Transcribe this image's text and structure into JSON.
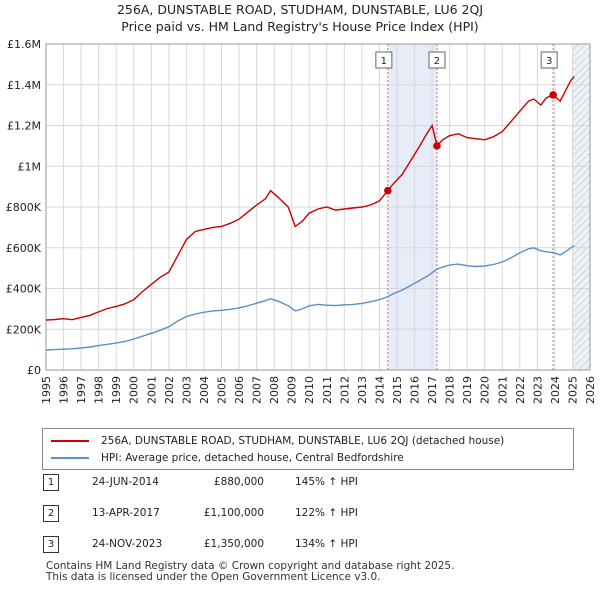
{
  "chart_data": {
    "type": "line",
    "title": "256A, DUNSTABLE ROAD, STUDHAM, DUNSTABLE, LU6 2QJ",
    "subtitle": "Price paid vs. HM Land Registry's House Price Index (HPI)",
    "xlabel": "",
    "ylabel": "",
    "xlim": [
      1995,
      2026
    ],
    "ylim": [
      0,
      1600000
    ],
    "x_ticks": [
      "1995",
      "1996",
      "1997",
      "1998",
      "1999",
      "2000",
      "2001",
      "2002",
      "2003",
      "2004",
      "2005",
      "2006",
      "2007",
      "2008",
      "2009",
      "2010",
      "2011",
      "2012",
      "2013",
      "2014",
      "2015",
      "2016",
      "2017",
      "2018",
      "2019",
      "2020",
      "2021",
      "2022",
      "2023",
      "2024",
      "2025",
      "2026"
    ],
    "y_ticks": [
      {
        "value": 0,
        "label": "£0"
      },
      {
        "value": 200000,
        "label": "£200K"
      },
      {
        "value": 400000,
        "label": "£400K"
      },
      {
        "value": 600000,
        "label": "£600K"
      },
      {
        "value": 800000,
        "label": "£800K"
      },
      {
        "value": 1000000,
        "label": "£1M"
      },
      {
        "value": 1200000,
        "label": "£1.2M"
      },
      {
        "value": 1400000,
        "label": "£1.4M"
      },
      {
        "value": 1600000,
        "label": "£1.6M"
      }
    ],
    "grid": true,
    "series": [
      {
        "name": "256A, DUNSTABLE ROAD, STUDHAM, DUNSTABLE, LU6 2QJ (detached house)",
        "color": "#cc0000",
        "points": [
          [
            1995.0,
            245000
          ],
          [
            1995.5,
            248000
          ],
          [
            1996.0,
            252000
          ],
          [
            1996.5,
            247000
          ],
          [
            1997.0,
            258000
          ],
          [
            1997.5,
            268000
          ],
          [
            1998.0,
            285000
          ],
          [
            1998.5,
            302000
          ],
          [
            1999.0,
            312000
          ],
          [
            1999.5,
            325000
          ],
          [
            2000.0,
            345000
          ],
          [
            2000.5,
            385000
          ],
          [
            2001.0,
            420000
          ],
          [
            2001.5,
            455000
          ],
          [
            2002.0,
            480000
          ],
          [
            2002.5,
            560000
          ],
          [
            2003.0,
            640000
          ],
          [
            2003.5,
            680000
          ],
          [
            2004.0,
            690000
          ],
          [
            2004.5,
            700000
          ],
          [
            2005.0,
            705000
          ],
          [
            2005.5,
            720000
          ],
          [
            2006.0,
            740000
          ],
          [
            2006.5,
            775000
          ],
          [
            2007.0,
            810000
          ],
          [
            2007.5,
            840000
          ],
          [
            2007.8,
            880000
          ],
          [
            2008.2,
            850000
          ],
          [
            2008.8,
            800000
          ],
          [
            2009.2,
            705000
          ],
          [
            2009.6,
            730000
          ],
          [
            2010.0,
            770000
          ],
          [
            2010.5,
            790000
          ],
          [
            2011.0,
            800000
          ],
          [
            2011.5,
            785000
          ],
          [
            2012.0,
            790000
          ],
          [
            2012.5,
            795000
          ],
          [
            2013.0,
            800000
          ],
          [
            2013.5,
            810000
          ],
          [
            2014.0,
            830000
          ],
          [
            2014.48,
            880000
          ],
          [
            2014.8,
            915000
          ],
          [
            2015.3,
            960000
          ],
          [
            2015.8,
            1030000
          ],
          [
            2016.3,
            1100000
          ],
          [
            2016.7,
            1160000
          ],
          [
            2017.0,
            1200000
          ],
          [
            2017.28,
            1100000
          ],
          [
            2017.6,
            1130000
          ],
          [
            2018.0,
            1150000
          ],
          [
            2018.5,
            1160000
          ],
          [
            2019.0,
            1140000
          ],
          [
            2019.5,
            1135000
          ],
          [
            2020.0,
            1130000
          ],
          [
            2020.5,
            1145000
          ],
          [
            2021.0,
            1170000
          ],
          [
            2021.5,
            1220000
          ],
          [
            2022.0,
            1270000
          ],
          [
            2022.5,
            1320000
          ],
          [
            2022.8,
            1330000
          ],
          [
            2023.2,
            1300000
          ],
          [
            2023.5,
            1335000
          ],
          [
            2023.9,
            1350000
          ],
          [
            2024.3,
            1320000
          ],
          [
            2024.6,
            1370000
          ],
          [
            2024.9,
            1420000
          ],
          [
            2025.1,
            1440000
          ]
        ]
      },
      {
        "name": "HPI: Average price, detached house, Central Bedfordshire",
        "color": "#5b8fc9",
        "points": [
          [
            1995.0,
            98000
          ],
          [
            1995.5,
            100000
          ],
          [
            1996.0,
            102000
          ],
          [
            1996.5,
            104000
          ],
          [
            1997.0,
            108000
          ],
          [
            1997.5,
            113000
          ],
          [
            1998.0,
            120000
          ],
          [
            1998.5,
            126000
          ],
          [
            1999.0,
            132000
          ],
          [
            1999.5,
            140000
          ],
          [
            2000.0,
            152000
          ],
          [
            2000.5,
            166000
          ],
          [
            2001.0,
            180000
          ],
          [
            2001.5,
            195000
          ],
          [
            2002.0,
            212000
          ],
          [
            2002.5,
            240000
          ],
          [
            2003.0,
            262000
          ],
          [
            2003.5,
            275000
          ],
          [
            2004.0,
            283000
          ],
          [
            2004.5,
            290000
          ],
          [
            2005.0,
            293000
          ],
          [
            2005.5,
            298000
          ],
          [
            2006.0,
            305000
          ],
          [
            2006.5,
            315000
          ],
          [
            2007.0,
            328000
          ],
          [
            2007.5,
            340000
          ],
          [
            2007.8,
            350000
          ],
          [
            2008.3,
            335000
          ],
          [
            2008.8,
            315000
          ],
          [
            2009.2,
            290000
          ],
          [
            2009.6,
            300000
          ],
          [
            2010.0,
            315000
          ],
          [
            2010.5,
            322000
          ],
          [
            2011.0,
            318000
          ],
          [
            2011.5,
            316000
          ],
          [
            2012.0,
            320000
          ],
          [
            2012.5,
            322000
          ],
          [
            2013.0,
            327000
          ],
          [
            2013.5,
            335000
          ],
          [
            2014.0,
            345000
          ],
          [
            2014.48,
            360000
          ],
          [
            2014.8,
            375000
          ],
          [
            2015.3,
            392000
          ],
          [
            2015.8,
            415000
          ],
          [
            2016.3,
            440000
          ],
          [
            2016.8,
            465000
          ],
          [
            2017.28,
            495000
          ],
          [
            2017.6,
            505000
          ],
          [
            2018.0,
            515000
          ],
          [
            2018.5,
            520000
          ],
          [
            2019.0,
            512000
          ],
          [
            2019.5,
            508000
          ],
          [
            2020.0,
            510000
          ],
          [
            2020.5,
            518000
          ],
          [
            2021.0,
            530000
          ],
          [
            2021.5,
            550000
          ],
          [
            2022.0,
            575000
          ],
          [
            2022.5,
            595000
          ],
          [
            2022.8,
            600000
          ],
          [
            2023.2,
            585000
          ],
          [
            2023.5,
            580000
          ],
          [
            2023.9,
            576000
          ],
          [
            2024.3,
            565000
          ],
          [
            2024.6,
            580000
          ],
          [
            2024.9,
            600000
          ],
          [
            2025.1,
            610000
          ]
        ]
      }
    ],
    "sales": [
      {
        "id": "1",
        "x": 2014.48,
        "value": 880000
      },
      {
        "id": "2",
        "x": 2017.28,
        "value": 1100000
      },
      {
        "id": "3",
        "x": 2023.9,
        "value": 1350000
      }
    ],
    "shaded_range": [
      2014.48,
      2017.28
    ],
    "hatch_start": 2025.0
  },
  "legend": {
    "property": "256A, DUNSTABLE ROAD, STUDHAM, DUNSTABLE, LU6 2QJ (detached house)",
    "hpi": "HPI: Average price, detached house, Central Bedfordshire",
    "property_color": "#cc0000",
    "hpi_color": "#5b8fc9"
  },
  "events": [
    {
      "num": "1",
      "date": "24-JUN-2014",
      "price": "£880,000",
      "hpi": "145% ↑ HPI"
    },
    {
      "num": "2",
      "date": "13-APR-2017",
      "price": "£1,100,000",
      "hpi": "122% ↑ HPI"
    },
    {
      "num": "3",
      "date": "24-NOV-2023",
      "price": "£1,350,000",
      "hpi": "134% ↑ HPI"
    }
  ],
  "footer": {
    "line1": "Contains HM Land Registry data © Crown copyright and database right 2025.",
    "line2": "This data is licensed under the Open Government Licence v3.0."
  }
}
